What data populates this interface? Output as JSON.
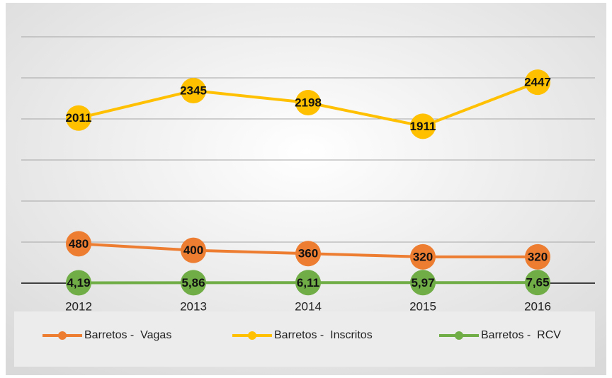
{
  "chart_data": {
    "type": "line",
    "categories": [
      "2012",
      "2013",
      "2014",
      "2015",
      "2016"
    ],
    "series": [
      {
        "name": "Barretos -  Vagas",
        "color": "#ed7d31",
        "values": [
          480,
          400,
          360,
          320,
          320
        ]
      },
      {
        "name": "Barretos -  Inscritos",
        "color": "#ffc000",
        "values": [
          2011,
          2345,
          2198,
          1911,
          2447
        ]
      },
      {
        "name": "Barretos -  RCV",
        "color": "#70ad47",
        "values": [
          4.19,
          5.86,
          6.11,
          5.97,
          7.65
        ],
        "value_labels": [
          "4,19",
          "5,86",
          "6,11",
          "5,97",
          "7,65"
        ]
      }
    ],
    "ylim": [
      0,
      3000
    ],
    "yticks": [
      0,
      500,
      1000,
      1500,
      2000,
      2500,
      3000
    ],
    "grid": true,
    "legend": "bottom"
  }
}
